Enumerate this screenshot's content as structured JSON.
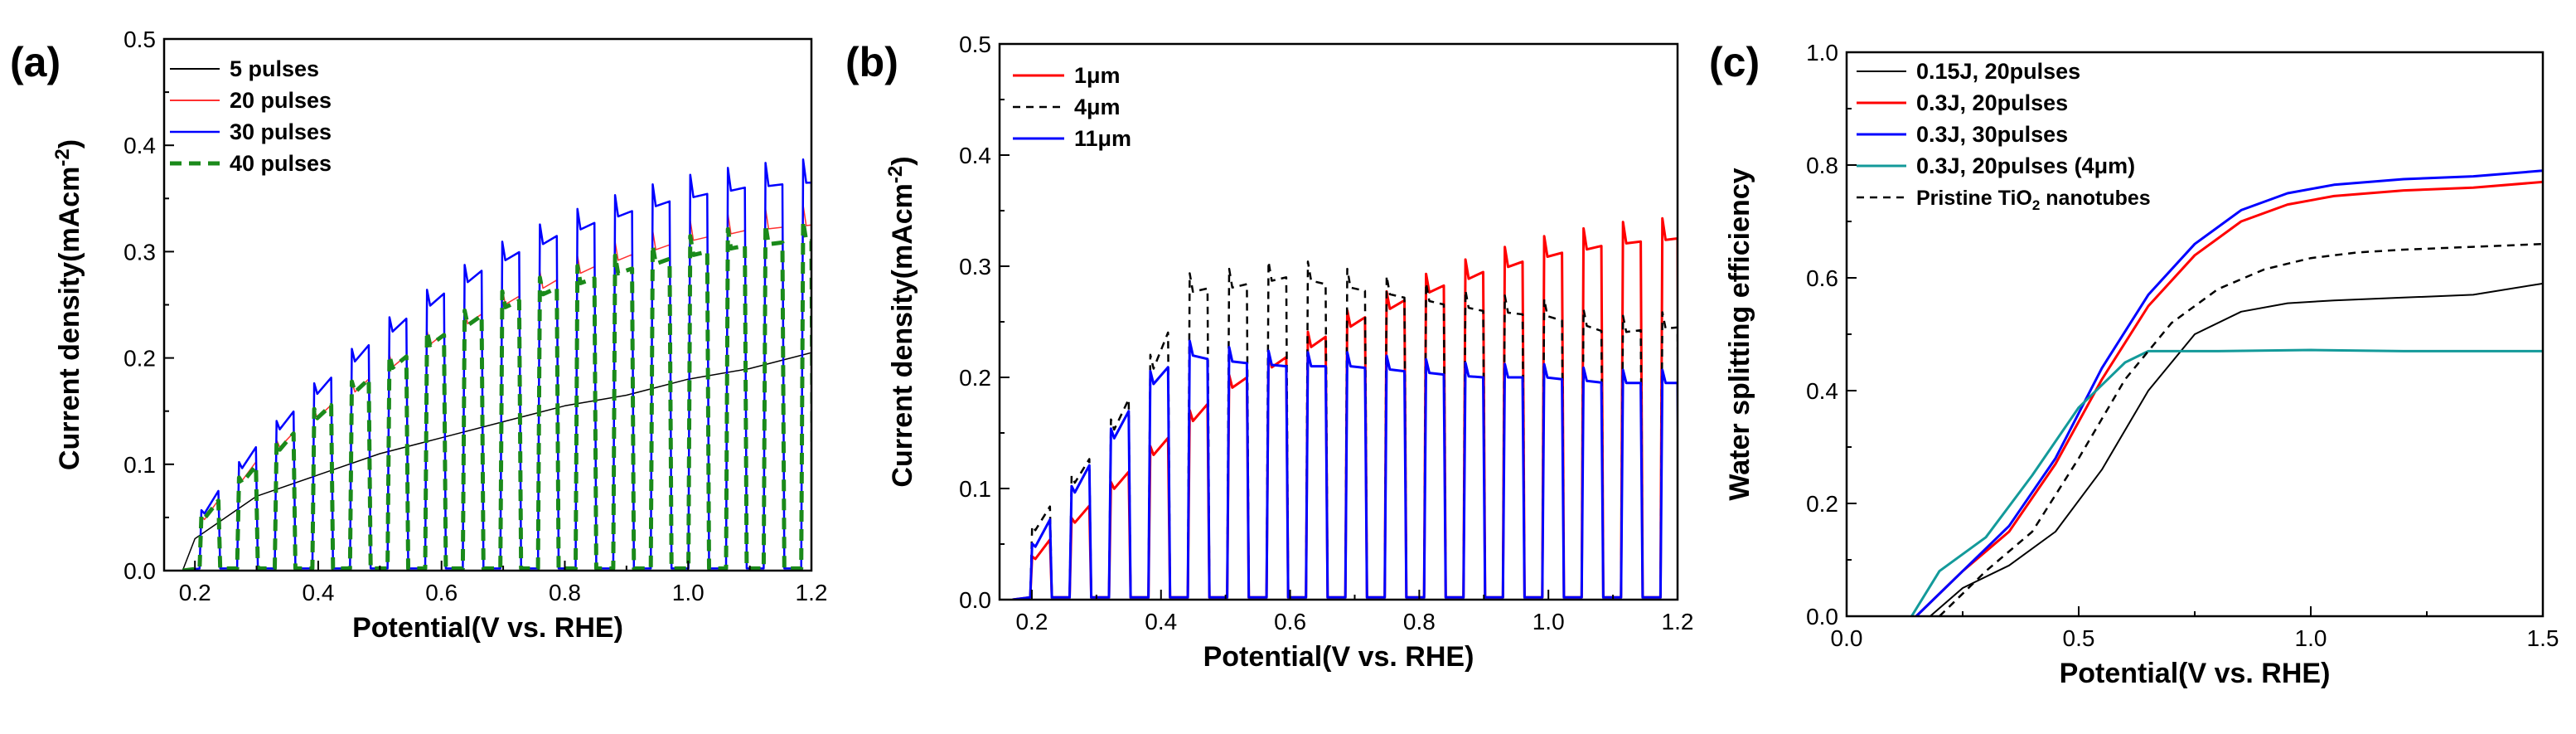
{
  "chart_data": [
    {
      "type": "line",
      "panel_label": "(a)",
      "xlabel": "Potential(V vs. RHE)",
      "ylabel_main": "Current density(mAcm",
      "ylabel_sup": "-2",
      "ylabel_end": ")",
      "xlim": [
        0.15,
        1.2
      ],
      "ylim": [
        0.0,
        0.5
      ],
      "xticks": [
        "0.2",
        "0.4",
        "0.6",
        "0.8",
        "1.0",
        "1.2"
      ],
      "yticks": [
        "0.0",
        "0.1",
        "0.2",
        "0.3",
        "0.4",
        "0.5"
      ],
      "series": [
        {
          "name": "5 pulses",
          "color": "#000000",
          "dash": "solid",
          "width": 1.5,
          "envelope_x": [
            0.18,
            0.2,
            0.3,
            0.4,
            0.5,
            0.6,
            0.7,
            0.8,
            0.9,
            1.0,
            1.1,
            1.2
          ],
          "envelope_y": [
            0.0,
            0.03,
            0.07,
            0.09,
            0.11,
            0.125,
            0.14,
            0.155,
            0.165,
            0.18,
            0.19,
            0.205
          ],
          "chopped": false
        },
        {
          "name": "20 pulses",
          "color": "#ff3030",
          "dash": "solid",
          "width": 1.5,
          "envelope_x": [
            0.18,
            0.2,
            0.3,
            0.4,
            0.5,
            0.6,
            0.7,
            0.8,
            0.9,
            1.0,
            1.1,
            1.2
          ],
          "envelope_y": [
            0.0,
            0.04,
            0.1,
            0.145,
            0.185,
            0.22,
            0.25,
            0.275,
            0.295,
            0.31,
            0.32,
            0.325
          ],
          "chopped": true
        },
        {
          "name": "30 pulses",
          "color": "#0000ff",
          "dash": "solid",
          "width": 2.5,
          "envelope_x": [
            0.18,
            0.2,
            0.3,
            0.4,
            0.5,
            0.6,
            0.7,
            0.8,
            0.9,
            1.0,
            1.1,
            1.2
          ],
          "envelope_y": [
            0.0,
            0.04,
            0.11,
            0.165,
            0.215,
            0.255,
            0.29,
            0.315,
            0.335,
            0.35,
            0.36,
            0.365
          ],
          "chopped": true
        },
        {
          "name": "40 pulses",
          "color": "#1a8a1a",
          "dash": "dashed",
          "width": 5,
          "envelope_x": [
            0.18,
            0.2,
            0.3,
            0.4,
            0.5,
            0.6,
            0.7,
            0.8,
            0.9,
            1.0,
            1.1,
            1.2
          ],
          "envelope_y": [
            0.0,
            0.035,
            0.09,
            0.14,
            0.18,
            0.215,
            0.245,
            0.265,
            0.28,
            0.295,
            0.305,
            0.31
          ],
          "chopped": true
        }
      ]
    },
    {
      "type": "line",
      "panel_label": "(b)",
      "xlabel": "Potential(V vs. RHE)",
      "ylabel_main": "Current density(mAcm",
      "ylabel_sup": "-2",
      "ylabel_end": ")",
      "xlim": [
        0.15,
        1.2
      ],
      "ylim": [
        0.0,
        0.5
      ],
      "xticks": [
        "0.2",
        "0.4",
        "0.6",
        "0.8",
        "1.0",
        "1.2"
      ],
      "yticks": [
        "0.0",
        "0.1",
        "0.2",
        "0.3",
        "0.4",
        "0.5"
      ],
      "series": [
        {
          "name": "1μm",
          "color": "#ff0000",
          "dash": "solid",
          "width": 3,
          "envelope_x": [
            0.17,
            0.2,
            0.3,
            0.4,
            0.5,
            0.6,
            0.7,
            0.8,
            0.9,
            1.0,
            1.1,
            1.2
          ],
          "envelope_y": [
            0.0,
            0.04,
            0.09,
            0.14,
            0.19,
            0.22,
            0.25,
            0.275,
            0.295,
            0.31,
            0.32,
            0.325
          ],
          "chopped": true
        },
        {
          "name": "4μm",
          "color": "#000000",
          "dash": "dashed",
          "width": 2.5,
          "envelope_x": [
            0.17,
            0.2,
            0.3,
            0.4,
            0.45,
            0.5,
            0.6,
            0.7,
            0.8,
            0.9,
            1.0,
            1.1,
            1.2
          ],
          "envelope_y": [
            0.0,
            0.06,
            0.13,
            0.22,
            0.28,
            0.28,
            0.29,
            0.28,
            0.27,
            0.26,
            0.255,
            0.24,
            0.245
          ],
          "chopped": true
        },
        {
          "name": "11μm",
          "color": "#0000ff",
          "dash": "solid",
          "width": 3,
          "envelope_x": [
            0.17,
            0.2,
            0.3,
            0.4,
            0.45,
            0.5,
            0.6,
            0.7,
            0.8,
            0.9,
            1.0,
            1.1,
            1.2
          ],
          "envelope_y": [
            0.0,
            0.04,
            0.12,
            0.2,
            0.22,
            0.215,
            0.21,
            0.21,
            0.205,
            0.2,
            0.2,
            0.195,
            0.195
          ],
          "chopped": true
        }
      ]
    },
    {
      "type": "line",
      "panel_label": "(c)",
      "xlabel": "Potential(V vs. RHE)",
      "ylabel": "Water splitting efficiency",
      "xlim": [
        0.0,
        1.5
      ],
      "ylim": [
        0.0,
        1.0
      ],
      "xticks": [
        "0.0",
        "0.5",
        "1.0",
        "1.5"
      ],
      "yticks": [
        "0.0",
        "0.2",
        "0.4",
        "0.6",
        "0.8",
        "1.0"
      ],
      "series": [
        {
          "name": "0.15J, 20pulses",
          "color": "#000000",
          "dash": "solid",
          "width": 2,
          "x": [
            0.18,
            0.25,
            0.35,
            0.45,
            0.55,
            0.65,
            0.75,
            0.85,
            0.95,
            1.05,
            1.2,
            1.35,
            1.5
          ],
          "y": [
            0.0,
            0.05,
            0.09,
            0.15,
            0.26,
            0.4,
            0.5,
            0.54,
            0.555,
            0.56,
            0.565,
            0.57,
            0.59
          ]
        },
        {
          "name": "0.3J, 20pulses",
          "color": "#ff0000",
          "dash": "solid",
          "width": 3,
          "x": [
            0.15,
            0.25,
            0.35,
            0.45,
            0.55,
            0.65,
            0.75,
            0.85,
            0.95,
            1.05,
            1.2,
            1.35,
            1.5
          ],
          "y": [
            0.0,
            0.08,
            0.15,
            0.27,
            0.42,
            0.55,
            0.64,
            0.7,
            0.73,
            0.745,
            0.755,
            0.76,
            0.77
          ]
        },
        {
          "name": "0.3J, 30pulses",
          "color": "#0000ff",
          "dash": "solid",
          "width": 3,
          "x": [
            0.15,
            0.25,
            0.35,
            0.45,
            0.55,
            0.65,
            0.75,
            0.85,
            0.95,
            1.05,
            1.2,
            1.35,
            1.5
          ],
          "y": [
            0.0,
            0.08,
            0.16,
            0.28,
            0.44,
            0.57,
            0.66,
            0.72,
            0.75,
            0.765,
            0.775,
            0.78,
            0.79
          ]
        },
        {
          "name": "0.3J, 20pulses (4μm)",
          "color": "#139a9a",
          "dash": "solid",
          "width": 3,
          "x": [
            0.14,
            0.2,
            0.3,
            0.4,
            0.5,
            0.6,
            0.65,
            0.7,
            0.8,
            1.0,
            1.2,
            1.5
          ],
          "y": [
            0.0,
            0.08,
            0.14,
            0.25,
            0.37,
            0.45,
            0.47,
            0.47,
            0.47,
            0.472,
            0.47,
            0.47
          ]
        },
        {
          "name": "Pristine TiO",
          "name_sub": "2",
          "name_end": " nanotubes",
          "color": "#000000",
          "dash": "dashed",
          "width": 2.5,
          "x": [
            0.2,
            0.3,
            0.4,
            0.5,
            0.6,
            0.7,
            0.8,
            0.9,
            1.0,
            1.1,
            1.2,
            1.35,
            1.5
          ],
          "y": [
            0.0,
            0.08,
            0.15,
            0.28,
            0.42,
            0.52,
            0.58,
            0.615,
            0.635,
            0.645,
            0.65,
            0.655,
            0.66
          ]
        }
      ]
    }
  ]
}
